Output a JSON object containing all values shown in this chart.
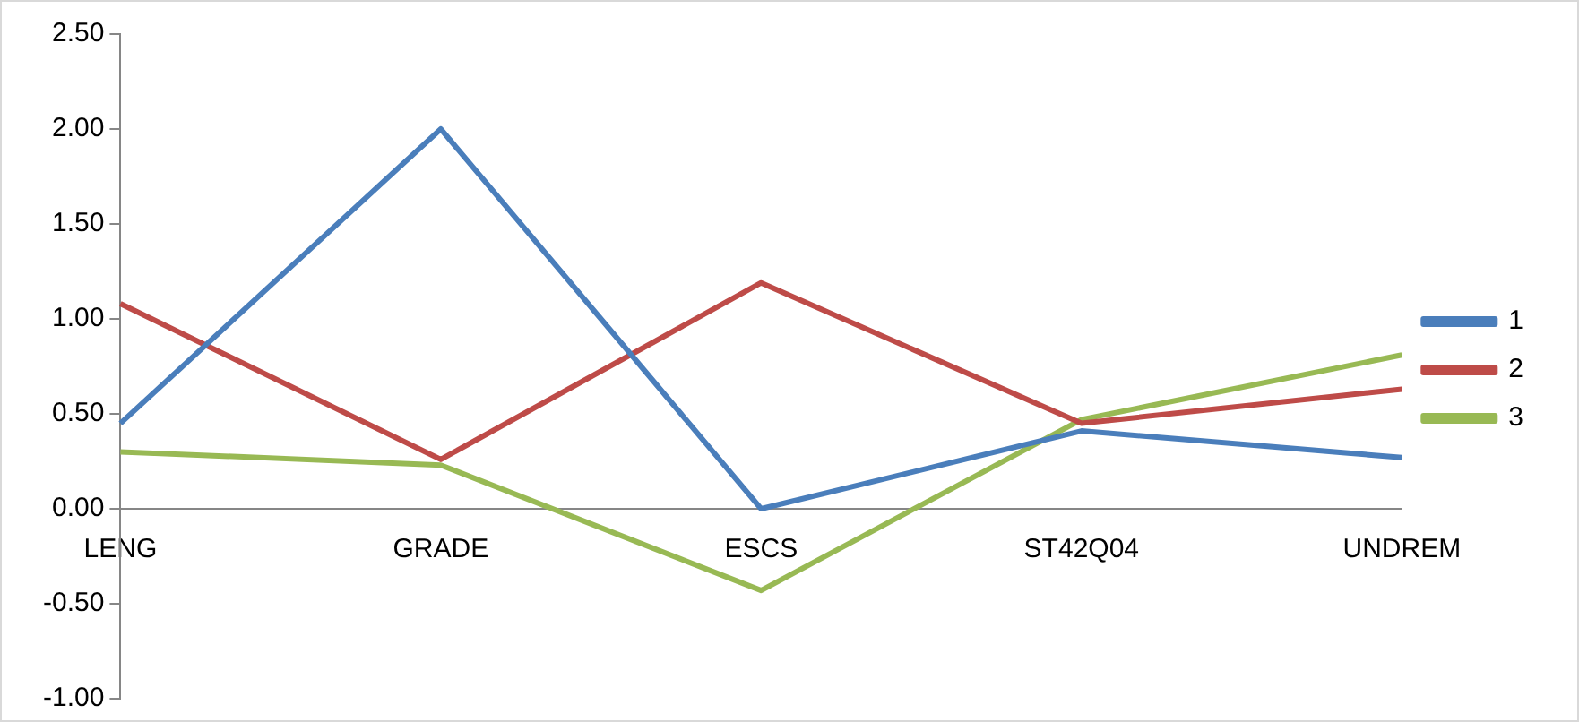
{
  "chart_data": {
    "type": "line",
    "categories": [
      "LENG",
      "GRADE",
      "ESCS",
      "ST42Q04",
      "UNDREM"
    ],
    "series": [
      {
        "name": "1",
        "color": "#4a7ebb",
        "values": [
          0.45,
          2.0,
          0.0,
          0.41,
          0.27
        ]
      },
      {
        "name": "2",
        "color": "#be4b48",
        "values": [
          1.08,
          0.26,
          1.19,
          0.45,
          0.63
        ]
      },
      {
        "name": "3",
        "color": "#98b954",
        "values": [
          0.3,
          0.23,
          -0.43,
          0.47,
          0.81
        ]
      }
    ],
    "ylim": [
      -1.0,
      2.5
    ],
    "yticks": [
      {
        "value": -1,
        "label": "-1.00"
      },
      {
        "value": -0.5,
        "label": "-0.50"
      },
      {
        "value": 0,
        "label": "0.00"
      },
      {
        "value": 0.5,
        "label": "0.50"
      },
      {
        "value": 1,
        "label": "1.00"
      },
      {
        "value": 1.5,
        "label": "1.50"
      },
      {
        "value": 2,
        "label": "2.00"
      },
      {
        "value": 2.5,
        "label": "2.50"
      }
    ],
    "grid": false,
    "legend": "right",
    "marker": "none",
    "line_style": "solid"
  }
}
